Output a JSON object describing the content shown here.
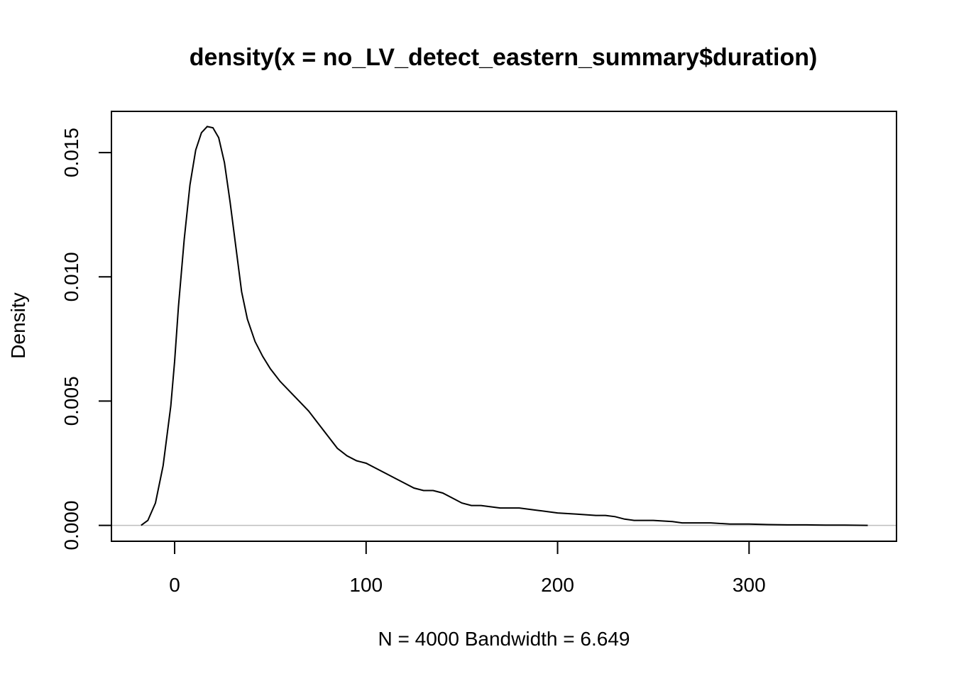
{
  "chart_data": {
    "type": "line",
    "title": "density(x = no_LV_detect_eastern_summary$duration)",
    "xlabel": "N = 4000   Bandwidth = 6.649",
    "ylabel": "Density",
    "xlim": [
      -33,
      377
    ],
    "ylim": [
      -0.00064,
      0.01666
    ],
    "x_ticks": [
      0,
      100,
      200,
      300
    ],
    "x_tick_labels": [
      "0",
      "100",
      "200",
      "300"
    ],
    "y_ticks": [
      0.0,
      0.005,
      0.01,
      0.015
    ],
    "y_tick_labels": [
      "0.000",
      "0.005",
      "0.010",
      "0.015"
    ],
    "baseline": 0,
    "baseline_color": "#bebebe",
    "line_color": "#000000",
    "grid": false,
    "series": [
      {
        "x": [
          -17.5,
          -14,
          -10,
          -6,
          -2,
          0,
          2,
          5,
          8,
          11,
          14,
          17,
          20,
          23,
          26,
          29,
          32,
          35,
          38,
          42,
          46,
          50,
          55,
          60,
          65,
          70,
          75,
          80,
          85,
          90,
          95,
          100,
          105,
          110,
          115,
          120,
          125,
          130,
          135,
          140,
          145,
          150,
          155,
          160,
          170,
          180,
          190,
          200,
          210,
          220,
          225,
          230,
          235,
          240,
          250,
          260,
          265,
          270,
          280,
          290,
          300,
          310,
          320,
          330,
          340,
          350,
          362
        ],
        "values": [
          0.0,
          0.0002,
          0.0009,
          0.0024,
          0.0048,
          0.0066,
          0.0088,
          0.0115,
          0.0137,
          0.0151,
          0.0158,
          0.01605,
          0.016,
          0.0156,
          0.0146,
          0.013,
          0.0112,
          0.0094,
          0.0083,
          0.0074,
          0.0068,
          0.0063,
          0.0058,
          0.0054,
          0.005,
          0.0046,
          0.0041,
          0.0036,
          0.0031,
          0.0028,
          0.0026,
          0.0025,
          0.0023,
          0.0021,
          0.0019,
          0.0017,
          0.0015,
          0.0014,
          0.0014,
          0.0013,
          0.0011,
          0.0009,
          0.0008,
          0.0008,
          0.0007,
          0.0007,
          0.0006,
          0.0005,
          0.00045,
          0.0004,
          0.0004,
          0.00035,
          0.00025,
          0.0002,
          0.0002,
          0.00015,
          0.0001,
          0.0001,
          0.0001,
          5e-05,
          5e-05,
          3e-05,
          2e-05,
          2e-05,
          1e-05,
          1e-05,
          0.0
        ]
      }
    ]
  }
}
